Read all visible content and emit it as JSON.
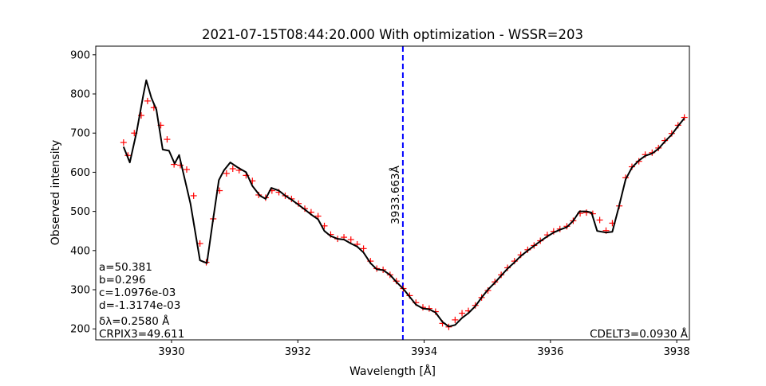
{
  "chart_data": {
    "type": "line",
    "title": "2021-07-15T08:44:20.000 With optimization - WSSR=203",
    "xlabel": "Wavelength [Å]",
    "ylabel": "Observed intensity",
    "xlim": [
      3928.8,
      3938.2
    ],
    "ylim": [
      172,
      922
    ],
    "xticks": [
      3930,
      3932,
      3934,
      3936,
      3938
    ],
    "yticks": [
      200,
      300,
      400,
      500,
      600,
      700,
      800,
      900
    ],
    "xtick_labels": [
      "3930",
      "3932",
      "3934",
      "3936",
      "3938"
    ],
    "ytick_labels": [
      "200",
      "300",
      "400",
      "500",
      "600",
      "700",
      "800",
      "900"
    ],
    "vline": {
      "x": 3933.663,
      "label": "3933.663Å",
      "color": "#0000ff"
    },
    "series": [
      {
        "kind": "markers",
        "marker": "+",
        "color": "#ff0000",
        "points": [
          [
            3929.24,
            676
          ],
          [
            3929.31,
            643
          ],
          [
            3929.41,
            700
          ],
          [
            3929.52,
            745
          ],
          [
            3929.62,
            782
          ],
          [
            3929.72,
            765
          ],
          [
            3929.83,
            720
          ],
          [
            3929.93,
            684
          ],
          [
            3930.04,
            620
          ],
          [
            3930.14,
            618
          ],
          [
            3930.24,
            607
          ],
          [
            3930.35,
            540
          ],
          [
            3930.45,
            418
          ],
          [
            3930.55,
            370
          ],
          [
            3930.66,
            481
          ],
          [
            3930.76,
            553
          ],
          [
            3930.87,
            597
          ],
          [
            3930.97,
            609
          ],
          [
            3931.07,
            605
          ],
          [
            3931.18,
            592
          ],
          [
            3931.28,
            578
          ],
          [
            3931.38,
            542
          ],
          [
            3931.49,
            535
          ],
          [
            3931.59,
            553
          ],
          [
            3931.7,
            549
          ],
          [
            3931.8,
            540
          ],
          [
            3931.9,
            532
          ],
          [
            3932.01,
            520
          ],
          [
            3932.11,
            507
          ],
          [
            3932.21,
            498
          ],
          [
            3932.32,
            488
          ],
          [
            3932.42,
            463
          ],
          [
            3932.52,
            441
          ],
          [
            3932.63,
            430
          ],
          [
            3932.73,
            434
          ],
          [
            3932.84,
            428
          ],
          [
            3932.94,
            416
          ],
          [
            3933.04,
            405
          ],
          [
            3933.15,
            373
          ],
          [
            3933.25,
            354
          ],
          [
            3933.35,
            351
          ],
          [
            3933.46,
            338
          ],
          [
            3933.56,
            322
          ],
          [
            3933.67,
            303
          ],
          [
            3933.77,
            285
          ],
          [
            3933.87,
            267
          ],
          [
            3933.98,
            255
          ],
          [
            3934.08,
            252
          ],
          [
            3934.18,
            244
          ],
          [
            3934.29,
            214
          ],
          [
            3934.39,
            205
          ],
          [
            3934.49,
            223
          ],
          [
            3934.6,
            240
          ],
          [
            3934.7,
            246
          ],
          [
            3934.81,
            260
          ],
          [
            3934.91,
            280
          ],
          [
            3935.01,
            298
          ],
          [
            3935.12,
            320
          ],
          [
            3935.22,
            338
          ],
          [
            3935.32,
            356
          ],
          [
            3935.43,
            373
          ],
          [
            3935.53,
            389
          ],
          [
            3935.64,
            402
          ],
          [
            3935.74,
            413
          ],
          [
            3935.84,
            425
          ],
          [
            3935.95,
            440
          ],
          [
            3936.05,
            449
          ],
          [
            3936.15,
            455
          ],
          [
            3936.26,
            462
          ],
          [
            3936.36,
            476
          ],
          [
            3936.47,
            495
          ],
          [
            3936.57,
            497
          ],
          [
            3936.67,
            494
          ],
          [
            3936.78,
            478
          ],
          [
            3936.88,
            451
          ],
          [
            3936.98,
            470
          ],
          [
            3937.09,
            514
          ],
          [
            3937.19,
            586
          ],
          [
            3937.29,
            614
          ],
          [
            3937.4,
            628
          ],
          [
            3937.5,
            645
          ],
          [
            3937.61,
            650
          ],
          [
            3937.71,
            662
          ],
          [
            3937.81,
            681
          ],
          [
            3937.92,
            699
          ],
          [
            3938.02,
            720
          ],
          [
            3938.12,
            740
          ]
        ]
      },
      {
        "kind": "line",
        "color": "#000000",
        "points": [
          [
            3929.24,
            665
          ],
          [
            3929.34,
            625
          ],
          [
            3929.45,
            705
          ],
          [
            3929.55,
            795
          ],
          [
            3929.6,
            835
          ],
          [
            3929.68,
            790
          ],
          [
            3929.76,
            760
          ],
          [
            3929.86,
            658
          ],
          [
            3929.96,
            655
          ],
          [
            3930.05,
            622
          ],
          [
            3930.12,
            644
          ],
          [
            3930.3,
            520
          ],
          [
            3930.45,
            375
          ],
          [
            3930.56,
            368
          ],
          [
            3930.65,
            470
          ],
          [
            3930.75,
            580
          ],
          [
            3930.83,
            605
          ],
          [
            3930.93,
            625
          ],
          [
            3931.05,
            612
          ],
          [
            3931.18,
            600
          ],
          [
            3931.28,
            565
          ],
          [
            3931.4,
            540
          ],
          [
            3931.49,
            532
          ],
          [
            3931.58,
            560
          ],
          [
            3931.7,
            553
          ],
          [
            3931.8,
            540
          ],
          [
            3931.9,
            530
          ],
          [
            3932.01,
            517
          ],
          [
            3932.11,
            505
          ],
          [
            3932.21,
            492
          ],
          [
            3932.32,
            480
          ],
          [
            3932.42,
            450
          ],
          [
            3932.52,
            437
          ],
          [
            3932.63,
            430
          ],
          [
            3932.73,
            428
          ],
          [
            3932.84,
            418
          ],
          [
            3932.94,
            410
          ],
          [
            3933.04,
            395
          ],
          [
            3933.15,
            368
          ],
          [
            3933.25,
            352
          ],
          [
            3933.35,
            350
          ],
          [
            3933.46,
            338
          ],
          [
            3933.56,
            320
          ],
          [
            3933.67,
            302
          ],
          [
            3933.77,
            282
          ],
          [
            3933.87,
            262
          ],
          [
            3933.98,
            252
          ],
          [
            3934.08,
            250
          ],
          [
            3934.18,
            242
          ],
          [
            3934.29,
            218
          ],
          [
            3934.39,
            206
          ],
          [
            3934.49,
            210
          ],
          [
            3934.6,
            228
          ],
          [
            3934.7,
            240
          ],
          [
            3934.81,
            258
          ],
          [
            3934.91,
            280
          ],
          [
            3935.01,
            300
          ],
          [
            3935.12,
            318
          ],
          [
            3935.22,
            336
          ],
          [
            3935.32,
            354
          ],
          [
            3935.43,
            370
          ],
          [
            3935.53,
            386
          ],
          [
            3935.64,
            400
          ],
          [
            3935.74,
            412
          ],
          [
            3935.84,
            424
          ],
          [
            3935.95,
            436
          ],
          [
            3936.05,
            446
          ],
          [
            3936.15,
            453
          ],
          [
            3936.26,
            460
          ],
          [
            3936.36,
            476
          ],
          [
            3936.46,
            500
          ],
          [
            3936.57,
            500
          ],
          [
            3936.65,
            497
          ],
          [
            3936.74,
            450
          ],
          [
            3936.88,
            446
          ],
          [
            3936.98,
            448
          ],
          [
            3937.08,
            510
          ],
          [
            3937.19,
            582
          ],
          [
            3937.29,
            612
          ],
          [
            3937.4,
            630
          ],
          [
            3937.5,
            642
          ],
          [
            3937.61,
            648
          ],
          [
            3937.71,
            660
          ],
          [
            3937.81,
            678
          ],
          [
            3937.92,
            696
          ],
          [
            3938.02,
            718
          ],
          [
            3938.12,
            738
          ]
        ]
      }
    ],
    "annotations_left": [
      "a=50.381",
      "b=0.296",
      "c=1.0976e-03",
      "d=-1.3174e-03",
      "δλ=0.2580 Å",
      "CRPIX3=49.611"
    ],
    "annotation_right": "CDELT3=0.0930 Å"
  }
}
